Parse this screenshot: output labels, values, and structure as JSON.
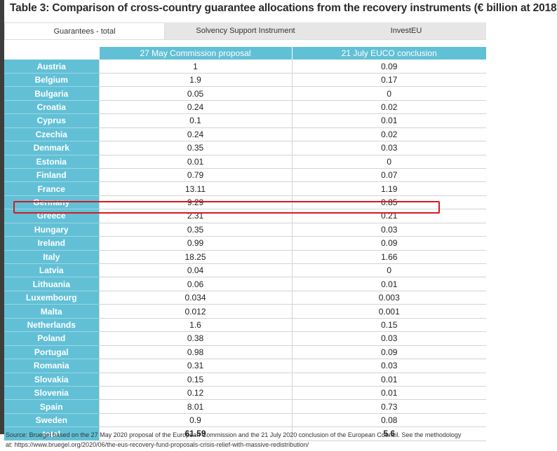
{
  "title": "Table 3:  Comparison of cross-country guarantee allocations from the recovery  instruments (€ billion at 2018",
  "tabs": [
    "Guarantees - total",
    "Solvency Support Instrument",
    "InvestEU"
  ],
  "table": {
    "headers": [
      "27 May Commission proposal",
      "21 July EUCO conclusion"
    ],
    "rows": [
      {
        "country": "Austria",
        "may": "1",
        "july": "0.09"
      },
      {
        "country": "Belgium",
        "may": "1.9",
        "july": "0.17"
      },
      {
        "country": "Bulgaria",
        "may": "0.05",
        "july": "0"
      },
      {
        "country": "Croatia",
        "may": "0.24",
        "july": "0.02"
      },
      {
        "country": "Cyprus",
        "may": "0.1",
        "july": "0.01"
      },
      {
        "country": "Czechia",
        "may": "0.24",
        "july": "0.02"
      },
      {
        "country": "Denmark",
        "may": "0.35",
        "july": "0.03"
      },
      {
        "country": "Estonia",
        "may": "0.01",
        "july": "0"
      },
      {
        "country": "Finland",
        "may": "0.79",
        "july": "0.07"
      },
      {
        "country": "France",
        "may": "13.11",
        "july": "1.19"
      },
      {
        "country": "Germany",
        "may": "9.29",
        "july": "0.85"
      },
      {
        "country": "Greece",
        "may": "2.31",
        "july": "0.21"
      },
      {
        "country": "Hungary",
        "may": "0.35",
        "july": "0.03"
      },
      {
        "country": "Ireland",
        "may": "0.99",
        "july": "0.09"
      },
      {
        "country": "Italy",
        "may": "18.25",
        "july": "1.66"
      },
      {
        "country": "Latvia",
        "may": "0.04",
        "july": "0"
      },
      {
        "country": "Lithuania",
        "may": "0.06",
        "july": "0.01"
      },
      {
        "country": "Luxembourg",
        "may": "0.034",
        "july": "0.003"
      },
      {
        "country": "Malta",
        "may": "0.012",
        "july": "0.001"
      },
      {
        "country": "Netherlands",
        "may": "1.6",
        "july": "0.15"
      },
      {
        "country": "Poland",
        "may": "0.38",
        "july": "0.03"
      },
      {
        "country": "Portugal",
        "may": "0.98",
        "july": "0.09"
      },
      {
        "country": "Romania",
        "may": "0.31",
        "july": "0.03"
      },
      {
        "country": "Slovakia",
        "may": "0.15",
        "july": "0.01"
      },
      {
        "country": "Slovenia",
        "may": "0.12",
        "july": "0.01"
      },
      {
        "country": "Spain",
        "may": "8.01",
        "july": "0.73"
      },
      {
        "country": "Sweden",
        "may": "0.9",
        "july": "0.08"
      },
      {
        "country": "total",
        "may": "61.59",
        "july": "5.6"
      }
    ]
  },
  "source": {
    "line1": "Source:  Bruegel based on the 27 May 2020 proposal of the European Commission and the 21 July 2020 conclusion of the European Council. See the methodology",
    "line2": "at: https://www.bruegel.org/2020/06/the-eus-recovery-fund-proposals-crisis-relief-with-massive-redistribution/"
  },
  "colors": {
    "header_bg": "#62c0d6",
    "highlight_border": "#d7191f",
    "tab_inactive": "#e6e6e6"
  }
}
